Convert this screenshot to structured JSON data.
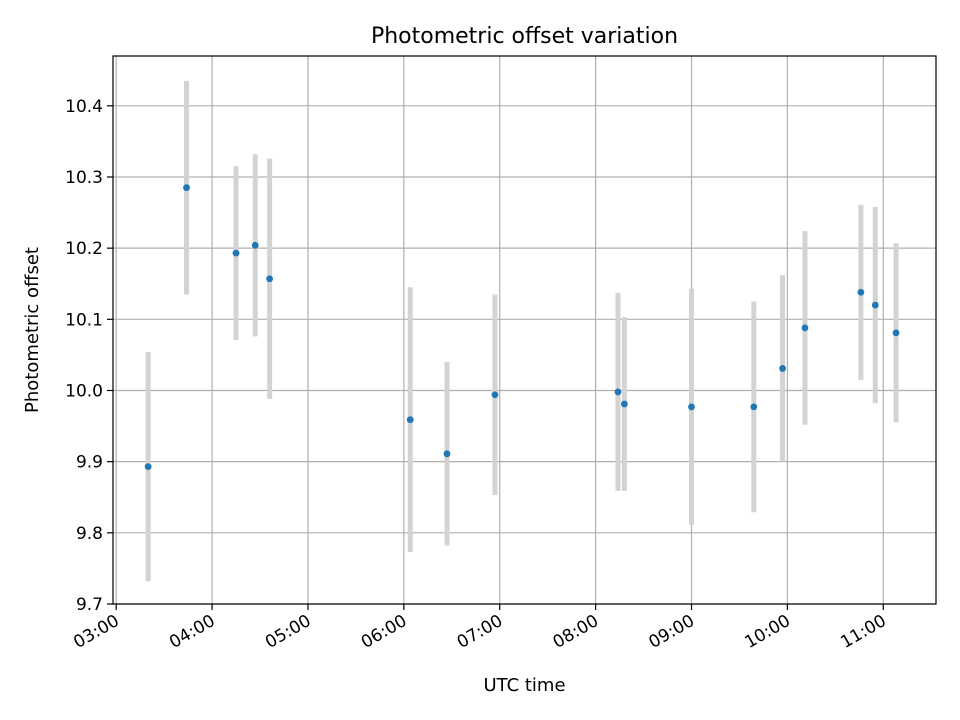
{
  "chart_data": {
    "type": "scatter",
    "title": "Photometric offset variation",
    "xlabel": "UTC time",
    "ylabel": "Photometric offset",
    "x_unit": "time of day (UTC)",
    "xlim": [
      "02:58",
      "11:33"
    ],
    "ylim": [
      9.7,
      10.47
    ],
    "x_ticks": [
      "03:00",
      "04:00",
      "05:00",
      "06:00",
      "07:00",
      "08:00",
      "09:00",
      "10:00",
      "11:00"
    ],
    "y_ticks": [
      "9.7",
      "9.8",
      "9.9",
      "10.0",
      "10.1",
      "10.2",
      "10.3",
      "10.4"
    ],
    "grid": true,
    "legend": "none",
    "colors": {
      "points": "#1f77b4",
      "errorbars": "#d3d3d3",
      "grid": "#b0b0b0"
    },
    "points": [
      {
        "x": "03:20",
        "y": 9.893,
        "err": 0.161
      },
      {
        "x": "03:44",
        "y": 10.285,
        "err": 0.15
      },
      {
        "x": "04:15",
        "y": 10.193,
        "err": 0.122
      },
      {
        "x": "04:27",
        "y": 10.204,
        "err": 0.128
      },
      {
        "x": "04:36",
        "y": 10.157,
        "err": 0.169
      },
      {
        "x": "06:04",
        "y": 9.959,
        "err": 0.186
      },
      {
        "x": "06:27",
        "y": 9.911,
        "err": 0.129
      },
      {
        "x": "06:57",
        "y": 9.994,
        "err": 0.141
      },
      {
        "x": "08:14",
        "y": 9.998,
        "err": 0.139
      },
      {
        "x": "08:18",
        "y": 9.981,
        "err": 0.122
      },
      {
        "x": "09:00",
        "y": 9.977,
        "err": 0.166
      },
      {
        "x": "09:39",
        "y": 9.977,
        "err": 0.148
      },
      {
        "x": "09:57",
        "y": 10.031,
        "err": 0.131
      },
      {
        "x": "10:11",
        "y": 10.088,
        "err": 0.136
      },
      {
        "x": "10:46",
        "y": 10.138,
        "err": 0.123
      },
      {
        "x": "10:55",
        "y": 10.12,
        "err": 0.138
      },
      {
        "x": "11:08",
        "y": 10.081,
        "err": 0.126
      }
    ]
  }
}
